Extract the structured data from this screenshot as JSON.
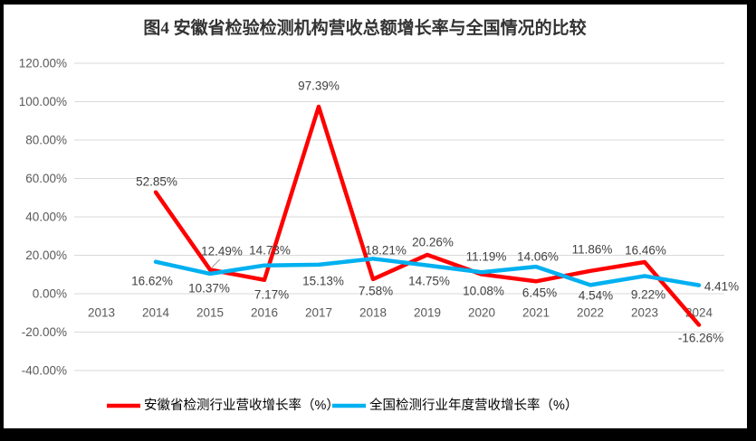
{
  "title": "图4 安徽省检验检测机构营收总额增长率与全国情况的比较",
  "colors": {
    "anhui": "#FF0000",
    "national": "#00B0F0",
    "grid": "#D9D9D9",
    "axis_text": "#595959",
    "label_text": "#404040",
    "leader_line": "#A6A6A6",
    "frame": "#000000",
    "title_text": "#333333"
  },
  "chart_data": {
    "type": "line",
    "title": "图4 安徽省检验检测机构营收总额增长率与全国情况的比较",
    "categories": [
      "2013",
      "2014",
      "2015",
      "2016",
      "2017",
      "2018",
      "2019",
      "2020",
      "2021",
      "2022",
      "2023",
      "2024"
    ],
    "series": [
      {
        "name": "安徽省检测行业营收增长率（%）",
        "color_key": "anhui",
        "values": [
          null,
          52.85,
          12.49,
          7.17,
          97.39,
          7.58,
          20.26,
          10.08,
          6.45,
          11.86,
          16.46,
          -16.26
        ],
        "labels": [
          "",
          "52.85%",
          "12.49%",
          "7.17%",
          "97.39%",
          "7.58%",
          "20.26%",
          "10.08%",
          "6.45%",
          "11.86%",
          "16.46%",
          "-16.26%"
        ]
      },
      {
        "name": "全国检测行业年度营收增长率（%）",
        "color_key": "national",
        "values": [
          null,
          16.62,
          10.37,
          14.73,
          15.13,
          18.21,
          14.75,
          11.19,
          14.06,
          4.54,
          9.22,
          4.41
        ],
        "labels": [
          "",
          "16.62%",
          "10.37%",
          "14.73%",
          "15.13%",
          "18.21%",
          "14.75%",
          "11.19%",
          "14.06%",
          "4.54%",
          "9.22%",
          "4.41%"
        ]
      }
    ],
    "ylim": [
      -40,
      120
    ],
    "ytick_step": 20,
    "ytick_labels": [
      "120.00%",
      "100.00%",
      "80.00%",
      "60.00%",
      "40.00%",
      "20.00%",
      "0.00%",
      "-20.00%",
      "-40.00%"
    ],
    "grid": true,
    "xlabel": "",
    "ylabel": "",
    "legend_position": "bottom"
  },
  "legend": {
    "items": [
      {
        "label": "安徽省检测行业营收增长率（%）"
      },
      {
        "label": "全国检测行业年度营收增长率（%）"
      }
    ]
  }
}
